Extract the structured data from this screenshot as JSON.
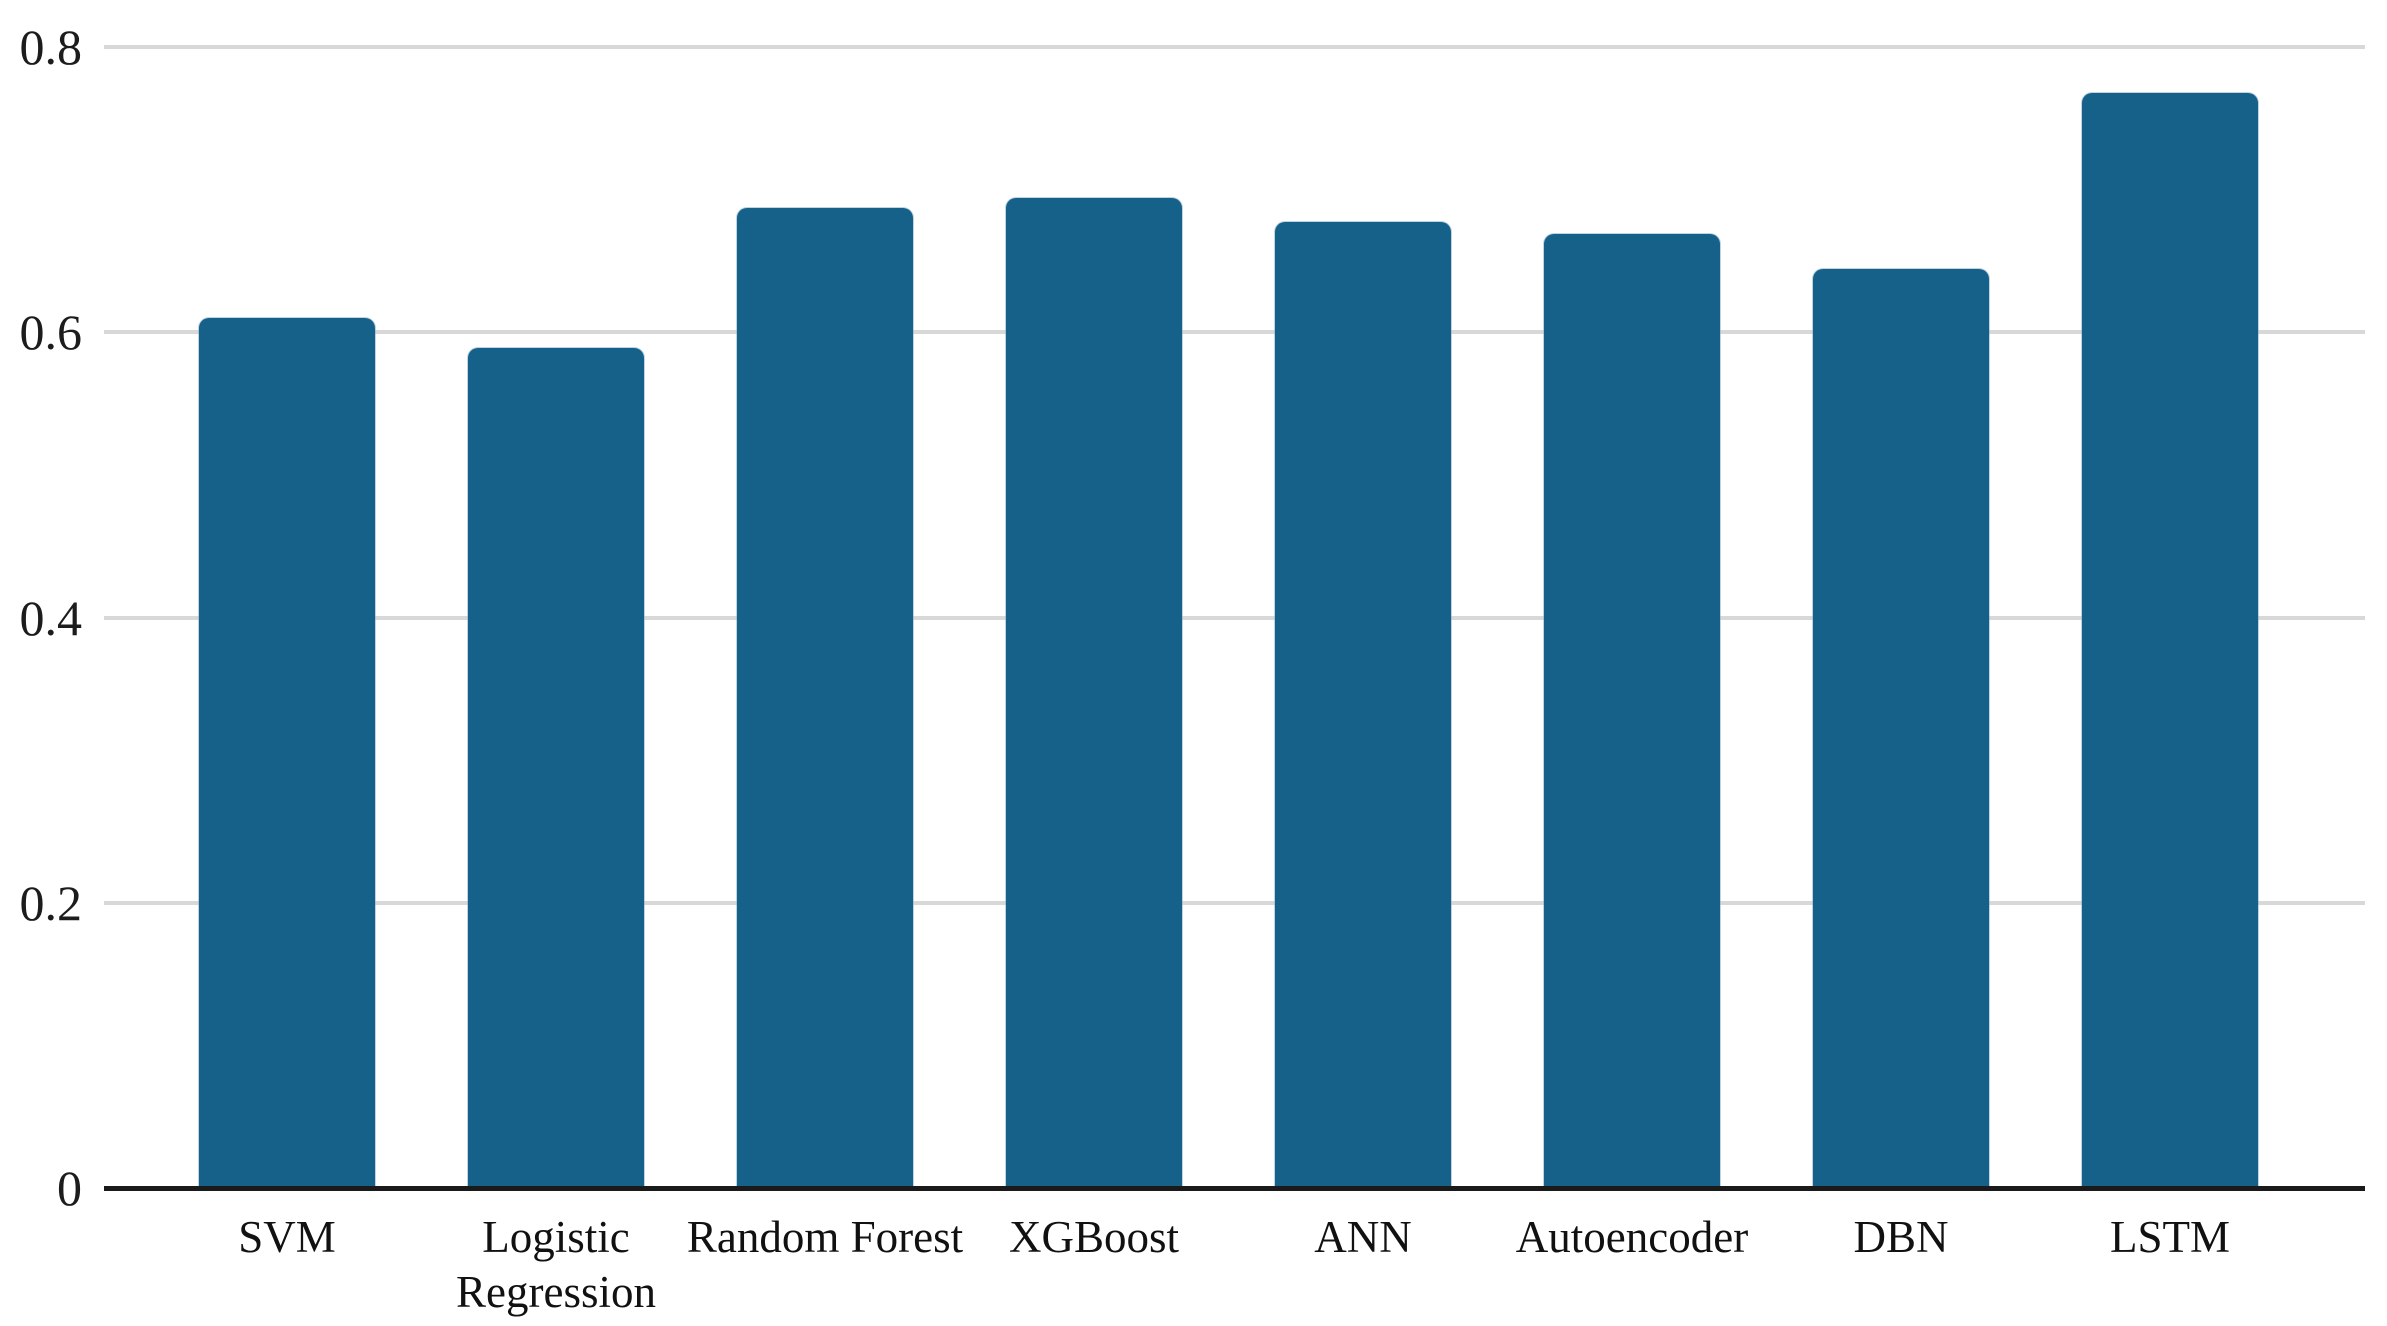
{
  "chart_data": {
    "type": "bar",
    "categories": [
      "SVM",
      "Logistic Regression",
      "Random Forest",
      "XGBoost",
      "ANN",
      "Autoencoder",
      "DBN",
      "LSTM"
    ],
    "values": [
      0.61,
      0.589,
      0.687,
      0.694,
      0.677,
      0.669,
      0.644,
      0.768
    ],
    "title": "",
    "xlabel": "",
    "ylabel": "",
    "ylim": [
      0,
      0.8
    ],
    "yticks": [
      0,
      0.2,
      0.4,
      0.6,
      0.8
    ],
    "ytick_labels": [
      "0",
      "0.2",
      "0.4",
      "0.6",
      "0.8"
    ],
    "grid": true,
    "legend": false,
    "colors": {
      "bar": "#15618a",
      "gridline": "#d8d8d8",
      "axis": "#1a1a1a",
      "text": "#111111",
      "background": "#ffffff"
    }
  }
}
